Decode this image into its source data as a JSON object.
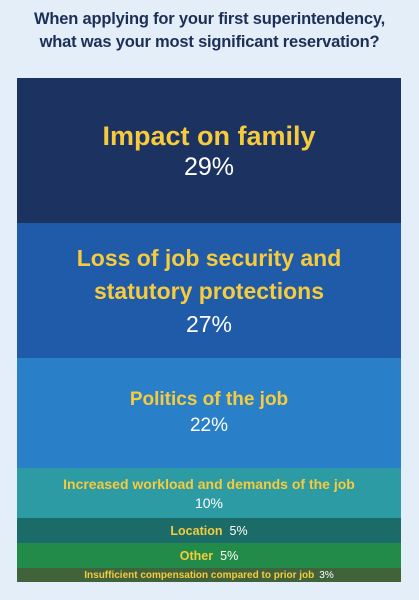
{
  "title": {
    "line1": "When applying for your first superintendency,",
    "line2": "what was your most significant reservation?"
  },
  "chart_data": {
    "type": "bar",
    "orientation": "stacked-vertical",
    "title": "When applying for your first superintendency, what was your most significant reservation?",
    "unit": "%",
    "categories": [
      "Impact on family",
      "Loss of job security and statutory protections",
      "Politics of the job",
      "Increased workload and demands of the job",
      "Location",
      "Other",
      "Insufficient compensation compared to prior job"
    ],
    "values": [
      29,
      27,
      22,
      10,
      5,
      5,
      3
    ],
    "segments": [
      {
        "label_lines": [
          "Impact on family"
        ],
        "value_text": "29%",
        "value": 29,
        "color": "#1c3260"
      },
      {
        "label_lines": [
          "Loss of job security and",
          "statutory protections"
        ],
        "value_text": "27%",
        "value": 27,
        "color": "#1f5ba8"
      },
      {
        "label_lines": [
          "Politics of the job"
        ],
        "value_text": "22%",
        "value": 22,
        "color": "#2a80c8"
      },
      {
        "label_lines": [
          "Increased workload and demands of the job"
        ],
        "value_text": "10%",
        "value": 10,
        "color": "#2d9ba3"
      },
      {
        "label_lines": [
          "Location"
        ],
        "value_text": "5%",
        "value": 5,
        "color": "#1b6c68"
      },
      {
        "label_lines": [
          "Other"
        ],
        "value_text": "5%",
        "value": 5,
        "color": "#238b49"
      },
      {
        "label_lines": [
          "Insufficient compensation compared to prior job"
        ],
        "value_text": "3%",
        "value": 3,
        "color": "#40633c"
      }
    ],
    "label_color": "#f6cb3d",
    "value_color": "#ffffff",
    "title_color": "#1c2f57",
    "background_color": "#e4eef8"
  }
}
